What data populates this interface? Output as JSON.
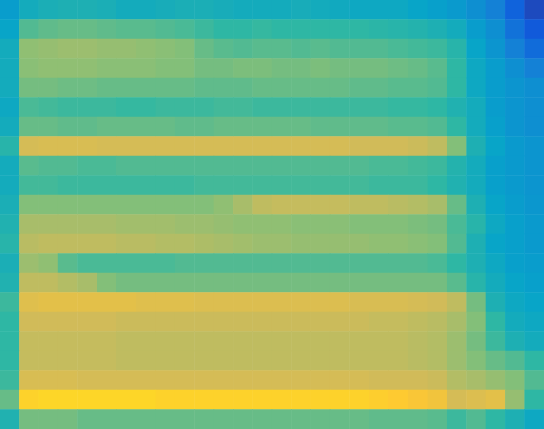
{
  "chart_data": {
    "type": "heatmap",
    "tick_labels": false,
    "clim": [
      0,
      100
    ],
    "cells": [
      [
        35,
        42,
        44,
        45,
        45,
        44,
        42,
        42,
        43,
        44,
        44,
        43,
        42,
        42,
        42,
        43,
        42,
        41,
        40,
        40,
        40,
        38,
        36,
        34,
        30,
        25,
        15,
        8
      ],
      [
        38,
        55,
        57,
        58,
        58,
        57,
        56,
        56,
        55,
        54,
        52,
        50,
        50,
        51,
        50,
        50,
        50,
        50,
        50,
        49,
        48,
        47,
        45,
        42,
        35,
        30,
        20,
        12
      ],
      [
        42,
        64,
        65,
        66,
        66,
        65,
        65,
        64,
        63,
        62,
        58,
        56,
        55,
        56,
        56,
        55,
        56,
        55,
        55,
        55,
        54,
        53,
        52,
        48,
        38,
        32,
        25,
        18
      ],
      [
        42,
        63,
        64,
        64,
        64,
        63,
        63,
        63,
        62,
        62,
        60,
        60,
        61,
        61,
        60,
        60,
        61,
        60,
        60,
        60,
        59,
        58,
        56,
        50,
        40,
        35,
        30,
        25
      ],
      [
        42,
        60,
        60,
        59,
        59,
        58,
        58,
        58,
        58,
        58,
        57,
        57,
        57,
        58,
        58,
        58,
        58,
        58,
        57,
        57,
        56,
        56,
        55,
        50,
        40,
        35,
        32,
        30
      ],
      [
        40,
        54,
        53,
        52,
        52,
        52,
        51,
        51,
        52,
        52,
        52,
        53,
        53,
        52,
        52,
        52,
        52,
        52,
        52,
        52,
        51,
        51,
        50,
        46,
        42,
        35,
        32,
        30
      ],
      [
        42,
        58,
        58,
        57,
        57,
        58,
        58,
        58,
        58,
        57,
        57,
        58,
        58,
        58,
        58,
        58,
        57,
        57,
        57,
        57,
        56,
        56,
        55,
        50,
        42,
        36,
        32,
        30
      ],
      [
        48,
        76,
        77,
        77,
        77,
        76,
        76,
        76,
        76,
        76,
        76,
        76,
        76,
        76,
        76,
        76,
        76,
        76,
        75,
        75,
        75,
        74,
        72,
        62,
        45,
        38,
        34,
        32
      ],
      [
        42,
        56,
        55,
        55,
        54,
        54,
        55,
        55,
        55,
        55,
        55,
        55,
        55,
        55,
        55,
        55,
        55,
        55,
        55,
        54,
        54,
        53,
        52,
        47,
        42,
        36,
        34,
        32
      ],
      [
        42,
        53,
        53,
        52,
        52,
        52,
        52,
        52,
        52,
        52,
        53,
        53,
        53,
        53,
        53,
        53,
        53,
        53,
        53,
        52,
        52,
        52,
        50,
        46,
        42,
        36,
        34,
        32
      ],
      [
        44,
        62,
        62,
        62,
        62,
        62,
        62,
        62,
        62,
        62,
        62,
        64,
        68,
        72,
        73,
        73,
        73,
        73,
        72,
        72,
        71,
        70,
        68,
        58,
        45,
        38,
        35,
        33
      ],
      [
        46,
        68,
        68,
        68,
        68,
        68,
        67,
        67,
        67,
        66,
        66,
        65,
        64,
        64,
        64,
        63,
        63,
        63,
        62,
        62,
        62,
        61,
        60,
        54,
        48,
        40,
        36,
        34
      ],
      [
        48,
        71,
        72,
        72,
        72,
        72,
        71,
        71,
        70,
        70,
        69,
        68,
        67,
        66,
        66,
        65,
        65,
        65,
        65,
        64,
        64,
        63,
        62,
        55,
        45,
        38,
        36,
        34
      ],
      [
        44,
        66,
        64,
        56,
        54,
        54,
        54,
        54,
        54,
        55,
        55,
        55,
        55,
        55,
        55,
        55,
        55,
        55,
        55,
        55,
        55,
        55,
        54,
        50,
        45,
        40,
        36,
        35
      ],
      [
        46,
        72,
        72,
        70,
        68,
        62,
        60,
        60,
        60,
        60,
        60,
        60,
        60,
        60,
        60,
        60,
        60,
        60,
        60,
        60,
        60,
        60,
        60,
        56,
        48,
        42,
        38,
        36
      ],
      [
        52,
        79,
        80,
        80,
        80,
        80,
        80,
        79,
        79,
        79,
        78,
        78,
        78,
        78,
        78,
        78,
        78,
        78,
        77,
        77,
        77,
        76,
        75,
        72,
        60,
        45,
        40,
        38
      ],
      [
        50,
        75,
        75,
        75,
        75,
        75,
        74,
        74,
        74,
        74,
        74,
        74,
        74,
        74,
        74,
        74,
        74,
        74,
        74,
        73,
        73,
        72,
        71,
        68,
        62,
        50,
        42,
        40
      ],
      [
        50,
        73,
        73,
        73,
        73,
        73,
        72,
        72,
        72,
        72,
        72,
        72,
        72,
        72,
        72,
        72,
        72,
        72,
        72,
        72,
        72,
        71,
        70,
        66,
        60,
        52,
        45,
        42
      ],
      [
        50,
        73,
        73,
        73,
        73,
        73,
        72,
        72,
        72,
        72,
        72,
        72,
        72,
        72,
        72,
        72,
        72,
        72,
        72,
        72,
        72,
        71,
        70,
        66,
        62,
        58,
        55,
        50
      ],
      [
        52,
        77,
        77,
        77,
        76,
        76,
        76,
        76,
        76,
        76,
        76,
        76,
        76,
        76,
        76,
        76,
        76,
        76,
        76,
        75,
        75,
        75,
        74,
        70,
        68,
        65,
        62,
        55
      ],
      [
        58,
        90,
        91,
        91,
        91,
        91,
        91,
        91,
        90,
        90,
        90,
        90,
        90,
        90,
        90,
        90,
        90,
        90,
        90,
        89,
        88,
        86,
        84,
        76,
        78,
        80,
        65,
        50
      ],
      [
        46,
        60,
        60,
        60,
        58,
        58,
        58,
        58,
        58,
        58,
        58,
        58,
        58,
        58,
        58,
        58,
        58,
        58,
        58,
        57,
        57,
        57,
        56,
        52,
        55,
        50,
        45,
        40
      ]
    ]
  }
}
